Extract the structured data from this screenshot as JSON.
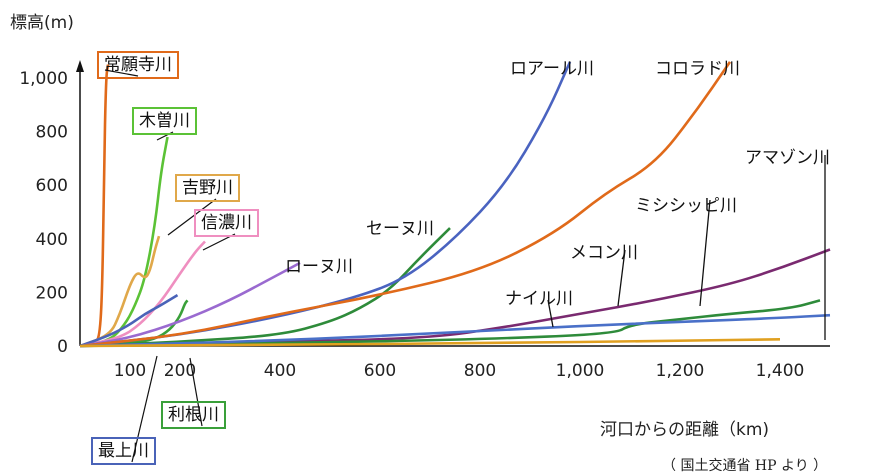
{
  "chart_data": {
    "type": "line",
    "ylabel": "標高(m)",
    "xlabel": "河口からの距離（km)",
    "xlim": [
      0,
      1500
    ],
    "ylim": [
      0,
      1100
    ],
    "x_ticks": [
      "100",
      "200",
      "400",
      "600",
      "800",
      "1,000",
      "1,200",
      "1,400"
    ],
    "x_tick_values": [
      100,
      200,
      400,
      600,
      800,
      1000,
      1200,
      1400
    ],
    "y_ticks": [
      "0",
      "200",
      "400",
      "600",
      "800",
      "1,000"
    ],
    "y_tick_values": [
      0,
      200,
      400,
      600,
      800,
      1000
    ],
    "source_note": "（ 国土交通省 HP より ）",
    "series": [
      {
        "name": "常願寺川",
        "color": "#e06a1a",
        "boxed": true,
        "x": [
          0,
          30,
          40,
          45,
          48,
          52,
          56
        ],
        "y": [
          0,
          10,
          40,
          250,
          650,
          1000,
          1050
        ]
      },
      {
        "name": "木曽川",
        "color": "#5bc236",
        "boxed": true,
        "x": [
          0,
          60,
          90,
          110,
          130,
          150,
          162,
          175
        ],
        "y": [
          0,
          20,
          80,
          150,
          250,
          450,
          650,
          780
        ]
      },
      {
        "name": "吉野川",
        "color": "#e0a84a",
        "boxed": true,
        "x": [
          0,
          60,
          80,
          100,
          115,
          130,
          140,
          150,
          158
        ],
        "y": [
          0,
          40,
          120,
          230,
          280,
          250,
          280,
          360,
          410
        ]
      },
      {
        "name": "信濃川",
        "color": "#ef8fc0",
        "boxed": true,
        "x": [
          0,
          80,
          120,
          160,
          200,
          230,
          250
        ],
        "y": [
          0,
          30,
          80,
          160,
          270,
          350,
          390
        ]
      },
      {
        "name": "最上川",
        "color": "#4a63b8",
        "boxed": true,
        "x": [
          0,
          60,
          100,
          130,
          160,
          195
        ],
        "y": [
          0,
          40,
          80,
          120,
          150,
          190
        ]
      },
      {
        "name": "利根川",
        "color": "#3aa03a",
        "boxed": true,
        "x": [
          0,
          100,
          150,
          180,
          200,
          210,
          215
        ],
        "y": [
          0,
          10,
          25,
          60,
          110,
          160,
          170
        ]
      },
      {
        "name": "ローヌ川",
        "color": "#9a6ad0",
        "boxed": false,
        "x": [
          0,
          100,
          200,
          300,
          380,
          440
        ],
        "y": [
          0,
          30,
          90,
          170,
          250,
          310
        ]
      },
      {
        "name": "セーヌ川",
        "color": "#2e8b3a",
        "boxed": false,
        "x": [
          0,
          200,
          400,
          500,
          560,
          620,
          680,
          740
        ],
        "y": [
          0,
          15,
          40,
          90,
          140,
          210,
          330,
          440
        ]
      },
      {
        "name": "ロアール川",
        "color": "#4a63c0",
        "boxed": false,
        "x": [
          0,
          200,
          400,
          550,
          650,
          750,
          850,
          930,
          980
        ],
        "y": [
          0,
          40,
          110,
          180,
          250,
          400,
          600,
          850,
          1060
        ]
      },
      {
        "name": "コロラド川",
        "color": "#e06a1a",
        "boxed": false,
        "x": [
          0,
          200,
          400,
          600,
          800,
          950,
          1050,
          1150,
          1230,
          1300
        ],
        "y": [
          0,
          40,
          120,
          190,
          280,
          420,
          570,
          680,
          870,
          1060
        ]
      },
      {
        "name": "メコン川",
        "color": "#7a2a70",
        "boxed": false,
        "x": [
          0,
          400,
          700,
          850,
          1000,
          1150,
          1300,
          1400,
          1500
        ],
        "y": [
          0,
          15,
          30,
          70,
          120,
          170,
          230,
          290,
          360
        ]
      },
      {
        "name": "ミシシッピ川",
        "color": "#2e8b3a",
        "boxed": false,
        "x": [
          0,
          400,
          800,
          1070,
          1100,
          1200,
          1300,
          1420,
          1480
        ],
        "y": [
          0,
          10,
          25,
          45,
          80,
          100,
          120,
          140,
          170
        ]
      },
      {
        "name": "ナイル川",
        "color": "#4a70c8",
        "boxed": false,
        "x": [
          0,
          400,
          800,
          1000,
          1200,
          1400,
          1500
        ],
        "y": [
          0,
          20,
          55,
          75,
          90,
          105,
          115
        ]
      },
      {
        "name": "アマゾン川",
        "color": "#e0a020",
        "boxed": false,
        "x": [
          0,
          400,
          800,
          1200,
          1400
        ],
        "y": [
          0,
          5,
          10,
          20,
          25
        ]
      }
    ]
  }
}
